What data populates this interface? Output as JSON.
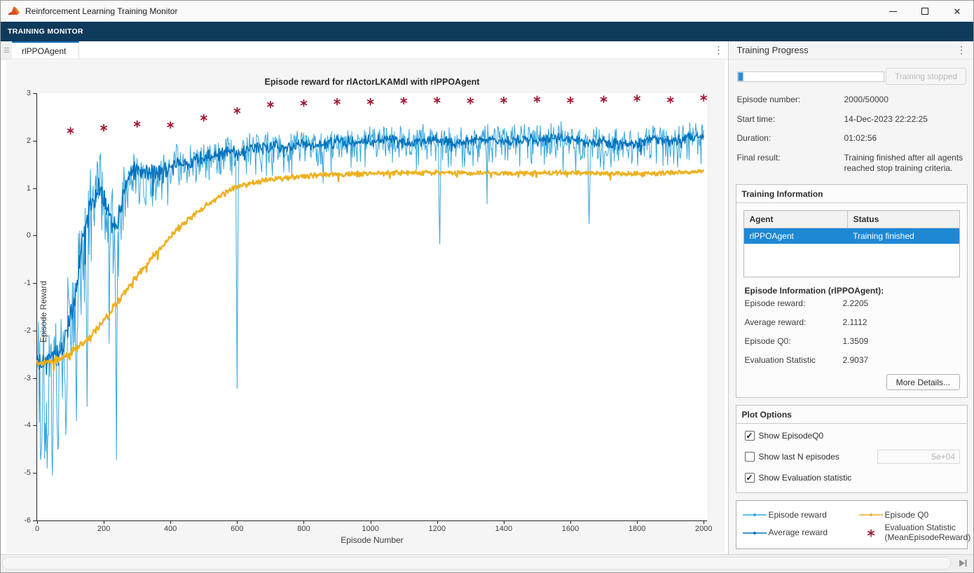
{
  "window": {
    "title": "Reinforcement Learning Training Monitor"
  },
  "toolstrip": {
    "label": "TRAINING MONITOR"
  },
  "tabs": [
    {
      "label": "rlPPOAgent",
      "active": true
    }
  ],
  "training_progress": {
    "title": "Training Progress",
    "progress_percent": 4,
    "stop_button": "Training stopped",
    "fields": [
      {
        "label": "Episode number:",
        "value": "2000/50000"
      },
      {
        "label": "Start time:",
        "value": "14-Dec-2023 22:22:25"
      },
      {
        "label": "Duration:",
        "value": "01:02:56"
      },
      {
        "label": "Final result:",
        "value": "Training finished after all agents reached stop training criteria."
      }
    ]
  },
  "training_information": {
    "title": "Training Information",
    "table": {
      "columns": [
        "Agent",
        "Status"
      ],
      "rows": [
        {
          "agent": "rlPPOAgent",
          "status": "Training finished",
          "selected": true
        }
      ]
    },
    "episode_info": {
      "title": "Episode Information (rlPPOAgent):",
      "fields": [
        {
          "label": "Episode reward:",
          "value": "2.2205"
        },
        {
          "label": "Average reward:",
          "value": "2.1112"
        },
        {
          "label": "Episode Q0:",
          "value": "1.3509"
        },
        {
          "label": "Evaluation Statistic",
          "value": "2.9037"
        }
      ],
      "more_details_button": "More Details..."
    }
  },
  "plot_options": {
    "title": "Plot Options",
    "options": [
      {
        "label": "Show EpisodeQ0",
        "checked": true,
        "mark": "✓"
      },
      {
        "label": "Show last N episodes",
        "checked": false,
        "mark": "",
        "input_value": "5e+04"
      },
      {
        "label": "Show Evaluation statistic",
        "checked": true,
        "mark": "✓"
      }
    ]
  },
  "legend": {
    "entries": [
      {
        "label": "Episode reward",
        "color": "#35a5dc",
        "marker": "line-dot"
      },
      {
        "label": "Average reward",
        "color": "#0072bd",
        "marker": "line-dot"
      },
      {
        "label": "Episode Q0",
        "color": "#edb120",
        "marker": "line-dot"
      },
      {
        "label": "Evaluation Statistic (MeanEpisodeReward)",
        "color": "#a2142f",
        "marker": "asterisk"
      }
    ]
  },
  "colors": {
    "accent_blue": "#0072bd",
    "selection": "#1e88d5",
    "toolstrip": "#0e3a5c",
    "progress": "#2e8bd5"
  },
  "chart_data": {
    "type": "line",
    "title": "Episode reward for rlActorLKAMdl with rlPPOAgent",
    "xlabel": "Episode Number",
    "ylabel": "Episode Reward",
    "xlim": [
      0,
      2010
    ],
    "ylim": [
      -6,
      3
    ],
    "xticks": [
      0,
      200,
      400,
      600,
      800,
      1000,
      1200,
      1400,
      1600,
      1800,
      2000
    ],
    "yticks": [
      -6,
      -5,
      -4,
      -3,
      -2,
      -1,
      0,
      1,
      2,
      3
    ],
    "grid": false,
    "legend_position": "right-panel",
    "step": 2,
    "series": [
      {
        "name": "Episode reward",
        "color": "#35a5dc",
        "kind": "noisy-line",
        "width": 1,
        "seed": 101,
        "down_bias": 1.85,
        "final_value": 2.2205,
        "trend_anchors": [
          [
            0,
            -2.55
          ],
          [
            25,
            -2.7
          ],
          [
            50,
            -2.6
          ],
          [
            75,
            -2.35
          ],
          [
            100,
            -1.85
          ],
          [
            115,
            -1.2
          ],
          [
            130,
            -0.5
          ],
          [
            145,
            0.2
          ],
          [
            160,
            0.65
          ],
          [
            180,
            1.0
          ],
          [
            200,
            0.85
          ],
          [
            215,
            0.5
          ],
          [
            230,
            0.15
          ],
          [
            245,
            0.4
          ],
          [
            260,
            0.95
          ],
          [
            280,
            1.3
          ],
          [
            300,
            1.4
          ],
          [
            330,
            1.35
          ],
          [
            360,
            1.3
          ],
          [
            390,
            1.45
          ],
          [
            420,
            1.55
          ],
          [
            450,
            1.5
          ],
          [
            480,
            1.6
          ],
          [
            510,
            1.65
          ],
          [
            540,
            1.72
          ],
          [
            570,
            1.78
          ],
          [
            600,
            1.72
          ],
          [
            640,
            1.82
          ],
          [
            680,
            1.88
          ],
          [
            720,
            1.9
          ],
          [
            760,
            1.86
          ],
          [
            800,
            1.94
          ],
          [
            850,
            1.9
          ],
          [
            900,
            2.0
          ],
          [
            950,
            1.96
          ],
          [
            1000,
            2.0
          ],
          [
            1050,
            2.04
          ],
          [
            1100,
            1.96
          ],
          [
            1150,
            2.0
          ],
          [
            1200,
            2.04
          ],
          [
            1250,
            1.96
          ],
          [
            1300,
            2.0
          ],
          [
            1350,
            2.04
          ],
          [
            1400,
            2.0
          ],
          [
            1450,
            2.04
          ],
          [
            1500,
            2.0
          ],
          [
            1550,
            2.08
          ],
          [
            1600,
            2.02
          ],
          [
            1650,
            1.96
          ],
          [
            1700,
            2.0
          ],
          [
            1750,
            1.92
          ],
          [
            1800,
            1.96
          ],
          [
            1850,
            2.04
          ],
          [
            1900,
            2.0
          ],
          [
            1950,
            2.06
          ],
          [
            2000,
            2.1
          ]
        ],
        "noise_amp_anchors": [
          [
            0,
            1.35
          ],
          [
            60,
            1.5
          ],
          [
            120,
            1.45
          ],
          [
            180,
            1.2
          ],
          [
            230,
            1.3
          ],
          [
            260,
            0.7
          ],
          [
            300,
            0.5
          ],
          [
            400,
            0.45
          ],
          [
            600,
            0.4
          ],
          [
            1000,
            0.38
          ],
          [
            2000,
            0.36
          ]
        ],
        "spikes": [
          [
            30,
            -4.9
          ],
          [
            45,
            -5.05
          ],
          [
            62,
            -4.5
          ],
          [
            85,
            -4.2
          ],
          [
            118,
            -3.9
          ],
          [
            150,
            -3.6
          ],
          [
            238,
            -4.72
          ],
          [
            600,
            -3.22
          ],
          [
            1208,
            -0.18
          ],
          [
            1656,
            0.25
          ]
        ],
        "clamp": [
          -5.6,
          2.62
        ]
      },
      {
        "name": "Average reward",
        "color": "#0072bd",
        "kind": "noisy-line",
        "width": 1.5,
        "seed": 202,
        "down_bias": 1.1,
        "final_value": 2.1112,
        "trend_anchors": [
          [
            0,
            -2.55
          ],
          [
            25,
            -2.7
          ],
          [
            50,
            -2.6
          ],
          [
            75,
            -2.35
          ],
          [
            100,
            -1.85
          ],
          [
            115,
            -1.2
          ],
          [
            130,
            -0.5
          ],
          [
            145,
            0.2
          ],
          [
            160,
            0.65
          ],
          [
            180,
            1.0
          ],
          [
            200,
            0.85
          ],
          [
            215,
            0.5
          ],
          [
            230,
            0.15
          ],
          [
            245,
            0.4
          ],
          [
            260,
            0.95
          ],
          [
            280,
            1.3
          ],
          [
            300,
            1.4
          ],
          [
            330,
            1.35
          ],
          [
            360,
            1.3
          ],
          [
            390,
            1.45
          ],
          [
            420,
            1.55
          ],
          [
            450,
            1.5
          ],
          [
            480,
            1.6
          ],
          [
            510,
            1.65
          ],
          [
            540,
            1.72
          ],
          [
            570,
            1.78
          ],
          [
            600,
            1.72
          ],
          [
            640,
            1.82
          ],
          [
            680,
            1.88
          ],
          [
            720,
            1.9
          ],
          [
            760,
            1.86
          ],
          [
            800,
            1.94
          ],
          [
            850,
            1.9
          ],
          [
            900,
            2.0
          ],
          [
            950,
            1.96
          ],
          [
            1000,
            2.0
          ],
          [
            1050,
            2.04
          ],
          [
            1100,
            1.96
          ],
          [
            1150,
            2.0
          ],
          [
            1200,
            2.04
          ],
          [
            1250,
            1.96
          ],
          [
            1300,
            2.0
          ],
          [
            1350,
            2.04
          ],
          [
            1400,
            2.0
          ],
          [
            1450,
            2.04
          ],
          [
            1500,
            2.0
          ],
          [
            1550,
            2.08
          ],
          [
            1600,
            2.02
          ],
          [
            1650,
            1.96
          ],
          [
            1700,
            2.0
          ],
          [
            1750,
            1.92
          ],
          [
            1800,
            1.96
          ],
          [
            1850,
            2.04
          ],
          [
            1900,
            2.0
          ],
          [
            1950,
            2.06
          ],
          [
            2000,
            2.11
          ]
        ],
        "noise_amp_anchors": [
          [
            0,
            0.3
          ],
          [
            150,
            0.35
          ],
          [
            250,
            0.25
          ],
          [
            400,
            0.17
          ],
          [
            800,
            0.14
          ],
          [
            2000,
            0.13
          ]
        ],
        "spikes": [],
        "clamp": [
          -3.3,
          2.35
        ]
      },
      {
        "name": "Episode Q0",
        "color": "#edb120",
        "kind": "noisy-line",
        "width": 2.4,
        "seed": 303,
        "down_bias": 1.0,
        "final_value": 1.3509,
        "trend_anchors": [
          [
            0,
            -2.7
          ],
          [
            40,
            -2.66
          ],
          [
            80,
            -2.56
          ],
          [
            120,
            -2.38
          ],
          [
            160,
            -2.12
          ],
          [
            200,
            -1.78
          ],
          [
            240,
            -1.42
          ],
          [
            280,
            -1.04
          ],
          [
            320,
            -0.68
          ],
          [
            360,
            -0.34
          ],
          [
            400,
            -0.02
          ],
          [
            440,
            0.26
          ],
          [
            480,
            0.5
          ],
          [
            520,
            0.7
          ],
          [
            560,
            0.88
          ],
          [
            600,
            1.02
          ],
          [
            640,
            1.1
          ],
          [
            680,
            1.16
          ],
          [
            720,
            1.2
          ],
          [
            760,
            1.23
          ],
          [
            800,
            1.26
          ],
          [
            850,
            1.28
          ],
          [
            900,
            1.29
          ],
          [
            950,
            1.3
          ],
          [
            1000,
            1.31
          ],
          [
            1100,
            1.32
          ],
          [
            1200,
            1.33
          ],
          [
            1300,
            1.32
          ],
          [
            1400,
            1.31
          ],
          [
            1500,
            1.32
          ],
          [
            1600,
            1.33
          ],
          [
            1700,
            1.31
          ],
          [
            1800,
            1.3
          ],
          [
            1900,
            1.32
          ],
          [
            2000,
            1.35
          ]
        ],
        "noise_amp_anchors": [
          [
            0,
            0.1
          ],
          [
            300,
            0.09
          ],
          [
            600,
            0.07
          ],
          [
            2000,
            0.05
          ]
        ],
        "spikes": [],
        "clamp": [
          -3.1,
          1.5
        ]
      },
      {
        "name": "Evaluation Statistic (MeanEpisodeReward)",
        "color": "#a2142f",
        "kind": "asterisk",
        "x": [
          100,
          200,
          300,
          400,
          500,
          600,
          700,
          800,
          900,
          1000,
          1100,
          1200,
          1300,
          1400,
          1500,
          1600,
          1700,
          1800,
          1900,
          2000
        ],
        "y": [
          2.21,
          2.27,
          2.35,
          2.33,
          2.48,
          2.63,
          2.76,
          2.79,
          2.82,
          2.82,
          2.84,
          2.85,
          2.84,
          2.85,
          2.87,
          2.85,
          2.87,
          2.89,
          2.86,
          2.9037
        ]
      }
    ]
  }
}
